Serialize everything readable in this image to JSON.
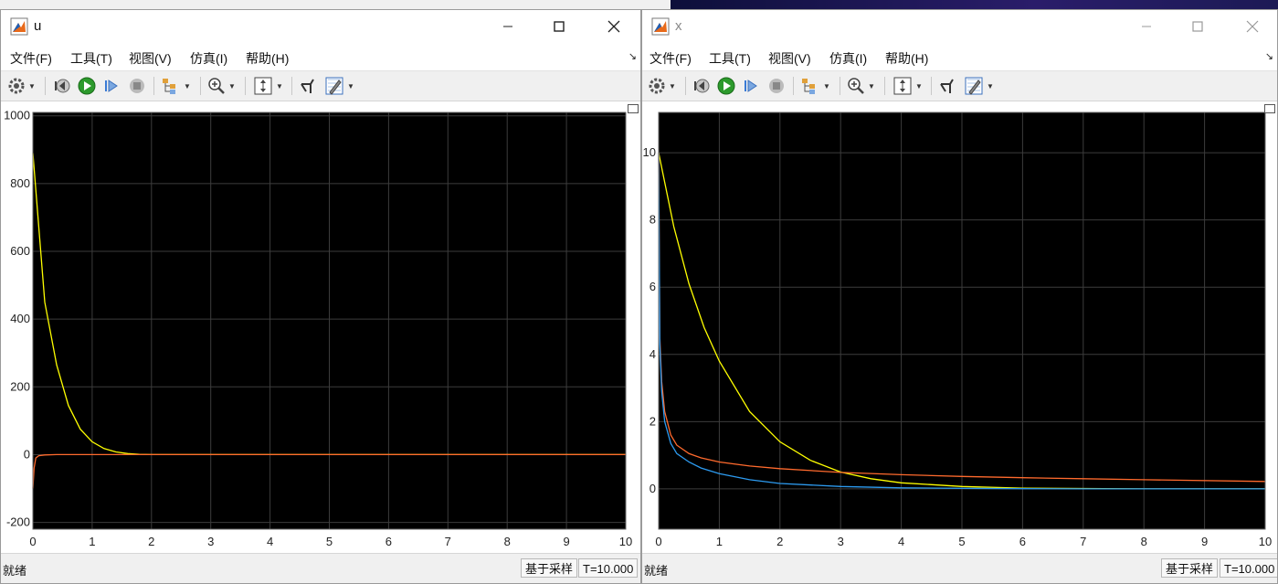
{
  "window_u": {
    "title": "u",
    "menu": [
      "文件(F)",
      "工具(T)",
      "视图(V)",
      "仿真(I)",
      "帮助(H)"
    ],
    "status": "就绪",
    "sample_mode": "基于采样",
    "time": "T=10.000",
    "chart_data": {
      "type": "line",
      "xlim": [
        0,
        10
      ],
      "ylim": [
        -220,
        1010
      ],
      "xticks": [
        "0",
        "1",
        "2",
        "3",
        "4",
        "5",
        "6",
        "7",
        "8",
        "9",
        "10"
      ],
      "yticks": [
        "-200",
        "0",
        "200",
        "400",
        "600",
        "800",
        "1000"
      ],
      "ytick_values": [
        -200,
        0,
        200,
        400,
        600,
        800,
        1000
      ],
      "grid": true,
      "series": [
        {
          "color": "#ffff00",
          "x": [
            0,
            0.2,
            0.4,
            0.6,
            0.8,
            1.0,
            1.2,
            1.4,
            1.6,
            1.8,
            2.0,
            2.5,
            3,
            10
          ],
          "y": [
            890,
            450,
            265,
            145,
            75,
            38,
            18,
            8,
            3,
            1,
            0,
            0,
            0,
            0
          ]
        },
        {
          "color": "#ff6a2d",
          "x": [
            0,
            0.02,
            0.05,
            0.1,
            0.2,
            0.4,
            1,
            10
          ],
          "y": [
            -100,
            -40,
            -10,
            -3,
            -1,
            0,
            0,
            0
          ]
        }
      ]
    }
  },
  "window_x": {
    "title": "x",
    "menu": [
      "文件(F)",
      "工具(T)",
      "视图(V)",
      "仿真(I)",
      "帮助(H)"
    ],
    "status": "就绪",
    "sample_mode": "基于采样",
    "time": "T=10.000",
    "chart_data": {
      "type": "line",
      "xlim": [
        0,
        10
      ],
      "ylim": [
        -1.2,
        11.2
      ],
      "xticks": [
        "0",
        "1",
        "2",
        "3",
        "4",
        "5",
        "6",
        "7",
        "8",
        "9",
        "10"
      ],
      "yticks": [
        "0",
        "2",
        "4",
        "6",
        "8",
        "10"
      ],
      "ytick_values": [
        0,
        2,
        4,
        6,
        8,
        10
      ],
      "grid": true,
      "series": [
        {
          "color": "#ffff00",
          "x": [
            0,
            0.25,
            0.5,
            0.75,
            1,
            1.5,
            2,
            2.5,
            3,
            3.5,
            4,
            5,
            6,
            7,
            8,
            10
          ],
          "y": [
            10,
            7.8,
            6.1,
            4.8,
            3.8,
            2.3,
            1.4,
            0.85,
            0.5,
            0.3,
            0.18,
            0.07,
            0.02,
            0.01,
            0,
            0
          ]
        },
        {
          "color": "#ff6a2d",
          "x": [
            0,
            0.02,
            0.05,
            0.1,
            0.2,
            0.3,
            0.5,
            0.7,
            1,
            1.5,
            2,
            3,
            4,
            5,
            6,
            7,
            8,
            10
          ],
          "y": [
            10,
            4.5,
            3.2,
            2.3,
            1.6,
            1.3,
            1.05,
            0.92,
            0.8,
            0.68,
            0.6,
            0.49,
            0.42,
            0.37,
            0.33,
            0.3,
            0.27,
            0.22
          ]
        },
        {
          "color": "#2d9bf0",
          "x": [
            0,
            0.02,
            0.05,
            0.1,
            0.2,
            0.3,
            0.5,
            0.7,
            1,
            1.5,
            2,
            3,
            4,
            5,
            6,
            7,
            8,
            10
          ],
          "y": [
            10,
            4.3,
            2.9,
            2.0,
            1.35,
            1.05,
            0.8,
            0.62,
            0.45,
            0.27,
            0.16,
            0.07,
            0.03,
            0.015,
            0.005,
            0,
            0,
            0
          ]
        }
      ]
    }
  }
}
